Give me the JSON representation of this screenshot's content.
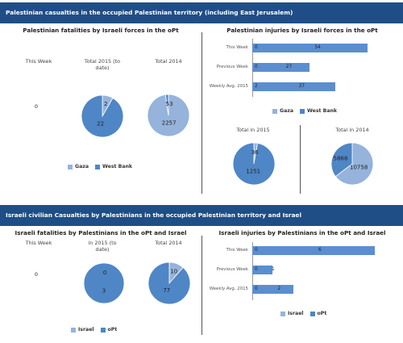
{
  "section1": {
    "banner": "Palestinian casualties in the occupied Palestinian territory (including East Jerusalem)",
    "fatalities_title": "Palestinian fatalities by Israeli forces in the oPt",
    "injuries_title": "Palestinian injuries by Israeli forces in the oPt",
    "col_this_week": "This Week",
    "col_total_2015": "Total 2015 (to date)",
    "col_total_2014": "Total 2014",
    "this_week_value": "0",
    "inj_total_2015": "Total in 2015",
    "inj_total_2014": "Total in 2014"
  },
  "section2": {
    "banner": "Israeli civilian Casualties by Palestinians in the occupied Palestinian territory and Israel",
    "fatalities_title": "Israeli fatalities by Palestinians in the oPt and Israel",
    "injuries_title": "Israeli injuries by Palestinians in the oPt and Israel",
    "col_this_week": "This Week",
    "col_in_2015": "in 2015 (to date)",
    "col_total_2014": "Total 2014",
    "this_week_value": "0"
  },
  "colors": {
    "light": "#95b3db",
    "dark": "#4f86c6",
    "bar": "#5b8ed0",
    "banner": "#1f4e87"
  },
  "chart_data": [
    {
      "type": "pie",
      "id": "pal_fat_2015",
      "categories": [
        "Gaza",
        "West Bank"
      ],
      "values": [
        2,
        22
      ],
      "legend": [
        "Gaza",
        "West Bank"
      ]
    },
    {
      "type": "pie",
      "id": "pal_fat_2014",
      "categories": [
        "Gaza",
        "West Bank"
      ],
      "values": [
        2257,
        53
      ]
    },
    {
      "type": "bar",
      "id": "pal_inj_bars",
      "orientation": "horizontal",
      "categories": [
        "This Week",
        "Previous Week",
        "Weekly Avg. 2015"
      ],
      "series": [
        {
          "name": "Gaza",
          "values": [
            0,
            0,
            2
          ]
        },
        {
          "name": "West Bank",
          "values": [
            54,
            27,
            37
          ]
        }
      ],
      "legend": [
        "Gaza",
        "West Bank"
      ]
    },
    {
      "type": "pie",
      "id": "pal_inj_2015",
      "categories": [
        "Gaza",
        "West Bank"
      ],
      "values": [
        36,
        1251
      ]
    },
    {
      "type": "pie",
      "id": "pal_inj_2014",
      "categories": [
        "Gaza",
        "West Bank"
      ],
      "values": [
        10758,
        5868
      ]
    },
    {
      "type": "pie",
      "id": "isr_fat_2015",
      "categories": [
        "Israel",
        "oPt"
      ],
      "values": [
        0,
        3
      ],
      "legend": [
        "Israel",
        "oPt"
      ]
    },
    {
      "type": "pie",
      "id": "isr_fat_2014",
      "categories": [
        "Israel",
        "oPt"
      ],
      "values": [
        10,
        77
      ]
    },
    {
      "type": "bar",
      "id": "isr_inj_bars",
      "orientation": "horizontal",
      "categories": [
        "This Week",
        "Previous Week",
        "Weekly Avg. 2015"
      ],
      "series": [
        {
          "name": "Israel",
          "values": [
            0,
            0,
            0
          ]
        },
        {
          "name": "oPt",
          "values": [
            6,
            1,
            2
          ]
        }
      ],
      "legend": [
        "Israel",
        "oPt"
      ]
    }
  ]
}
